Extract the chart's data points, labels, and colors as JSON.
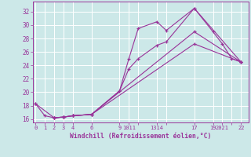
{
  "xlabel": "Windchill (Refroidissement éolien,°C)",
  "bg_color": "#cce8e8",
  "grid_color": "#ffffff",
  "line_color": "#993399",
  "lines": [
    {
      "x": [
        0,
        1,
        2,
        3,
        4,
        6,
        9,
        10,
        11,
        13,
        14,
        17,
        19,
        20,
        21,
        22
      ],
      "y": [
        18.3,
        16.5,
        16.2,
        16.3,
        16.5,
        16.7,
        20.2,
        25.0,
        29.5,
        30.5,
        29.2,
        32.5,
        29.0,
        27.2,
        25.0,
        24.5
      ]
    },
    {
      "x": [
        0,
        2,
        3,
        4,
        6,
        9,
        10,
        11,
        13,
        14,
        17,
        22
      ],
      "y": [
        18.3,
        16.2,
        16.3,
        16.5,
        16.7,
        20.2,
        23.5,
        25.0,
        27.0,
        27.5,
        32.5,
        24.5
      ]
    },
    {
      "x": [
        2,
        3,
        4,
        6,
        17,
        22
      ],
      "y": [
        16.2,
        16.3,
        16.5,
        16.7,
        29.0,
        24.5
      ]
    },
    {
      "x": [
        2,
        3,
        4,
        6,
        17,
        22
      ],
      "y": [
        16.2,
        16.3,
        16.5,
        16.7,
        27.2,
        24.5
      ]
    }
  ],
  "xtick_positions": [
    0,
    1,
    2,
    3,
    4,
    6,
    9,
    10,
    11,
    13,
    14,
    17,
    19,
    20,
    21,
    22
  ],
  "xtick_labels": [
    "0",
    "1",
    "2",
    "3",
    "4",
    "6",
    "9",
    "1011",
    "",
    "1314",
    "",
    "17",
    "19",
    "2021",
    "",
    "22"
  ],
  "ytick_positions": [
    16,
    18,
    20,
    22,
    24,
    26,
    28,
    30,
    32
  ],
  "ytick_labels": [
    "16",
    "18",
    "20",
    "22",
    "24",
    "26",
    "28",
    "30",
    "32"
  ],
  "xlim": [
    -0.3,
    22.8
  ],
  "ylim": [
    15.5,
    33.5
  ],
  "figsize": [
    3.2,
    2.0
  ],
  "dpi": 100
}
